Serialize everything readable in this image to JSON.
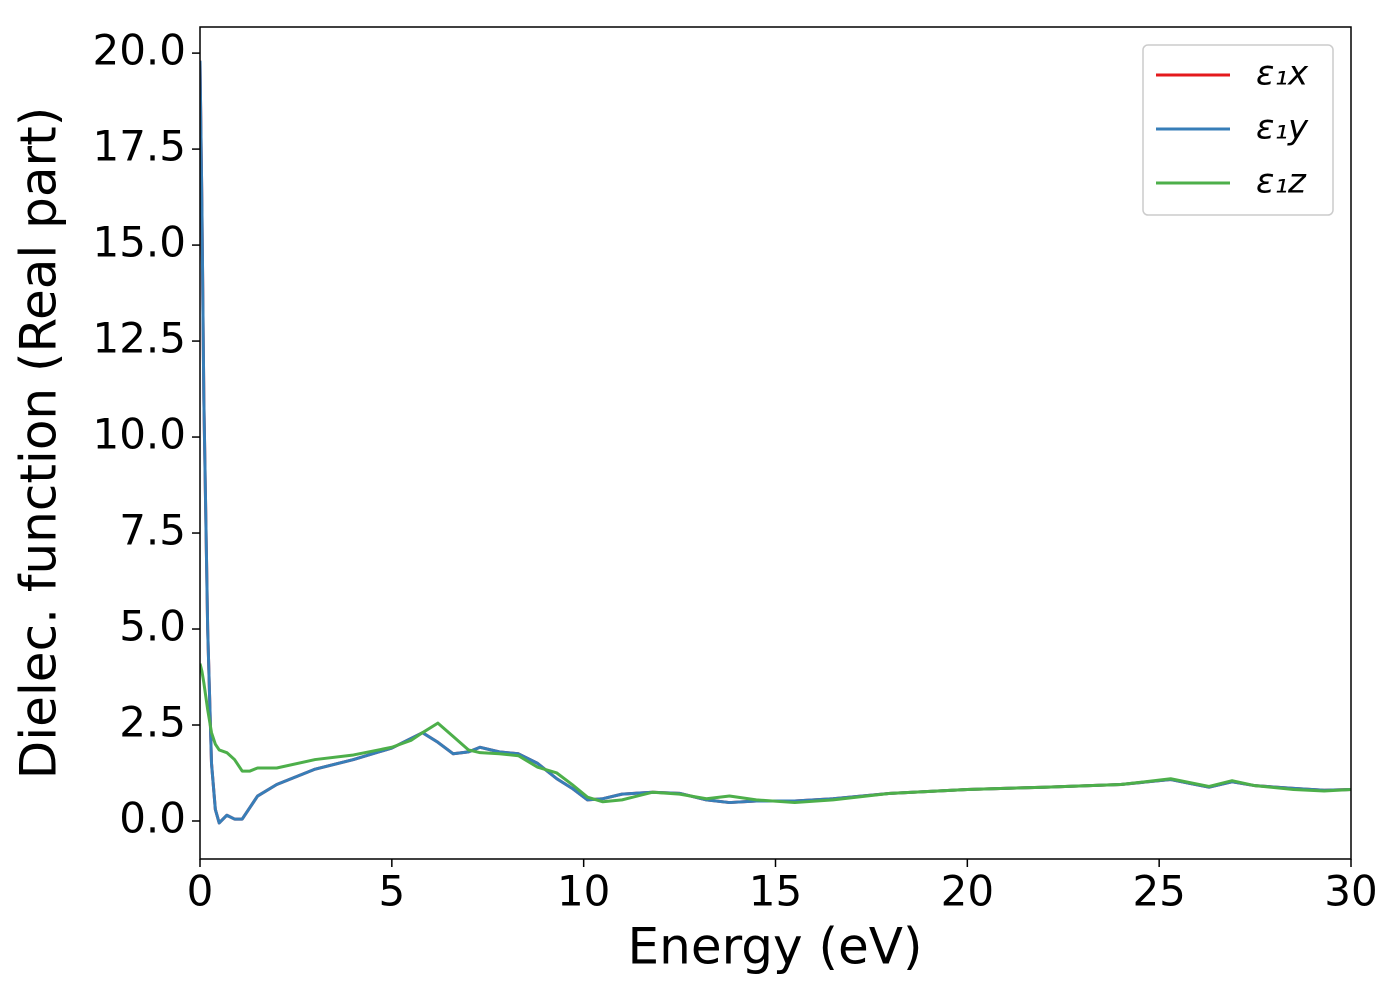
{
  "chart_data": {
    "type": "line",
    "xlabel": "Energy (eV)",
    "ylabel": "Dielec. function (Real part)",
    "xlim": [
      0,
      30
    ],
    "ylim": [
      -0.99,
      20.68
    ],
    "xticks": [
      0,
      5,
      10,
      15,
      20,
      25,
      30
    ],
    "yticks": [
      {
        "value": 0,
        "label": "0.0"
      },
      {
        "value": 2.5,
        "label": "2.5"
      },
      {
        "value": 5,
        "label": "5.0"
      },
      {
        "value": 7.5,
        "label": "7.5"
      },
      {
        "value": 10,
        "label": "10.0"
      },
      {
        "value": 12.5,
        "label": "12.5"
      },
      {
        "value": 15,
        "label": "15.0"
      },
      {
        "value": 17.5,
        "label": "17.5"
      },
      {
        "value": 20,
        "label": "20.0"
      }
    ],
    "legend": "upper right",
    "x": [
      0,
      0.05,
      0.1,
      0.2,
      0.3,
      0.4,
      0.5,
      0.7,
      0.9,
      1.1,
      1.3,
      1.5,
      2,
      3,
      4,
      5,
      5.5,
      5.8,
      6.2,
      6.6,
      7,
      7.3,
      7.8,
      8.3,
      8.8,
      9.3,
      9.7,
      10.1,
      10.5,
      11,
      11.8,
      12.5,
      13.2,
      13.8,
      14.5,
      15.5,
      16.5,
      18,
      20,
      22,
      24,
      25.3,
      25.8,
      26.3,
      26.9,
      27.5,
      28.5,
      29.3,
      30
    ],
    "series": [
      {
        "name": "ε₁x",
        "color": "#e41a1c",
        "values": [
          19.8,
          16,
          11,
          5,
          1.5,
          0.3,
          -0.05,
          0.15,
          0.05,
          0.05,
          0.35,
          0.65,
          0.95,
          1.35,
          1.6,
          1.9,
          2.15,
          2.3,
          2.05,
          1.75,
          1.8,
          1.92,
          1.8,
          1.75,
          1.5,
          1.1,
          0.85,
          0.55,
          0.58,
          0.7,
          0.75,
          0.72,
          0.55,
          0.48,
          0.52,
          0.52,
          0.58,
          0.72,
          0.82,
          0.88,
          0.95,
          1.08,
          0.98,
          0.88,
          1.02,
          0.92,
          0.85,
          0.8,
          0.82
        ]
      },
      {
        "name": "ε₁y",
        "color": "#377eb8",
        "values": [
          19.8,
          16,
          11,
          5,
          1.5,
          0.3,
          -0.05,
          0.15,
          0.05,
          0.05,
          0.35,
          0.65,
          0.95,
          1.35,
          1.6,
          1.9,
          2.15,
          2.3,
          2.05,
          1.75,
          1.8,
          1.92,
          1.8,
          1.75,
          1.5,
          1.1,
          0.85,
          0.55,
          0.58,
          0.7,
          0.75,
          0.72,
          0.55,
          0.48,
          0.52,
          0.52,
          0.58,
          0.72,
          0.82,
          0.88,
          0.95,
          1.08,
          0.98,
          0.88,
          1.02,
          0.92,
          0.85,
          0.8,
          0.82
        ]
      },
      {
        "name": "ε₁z",
        "color": "#4daf4a",
        "values": [
          4.1,
          3.9,
          3.6,
          2.9,
          2.3,
          2.0,
          1.85,
          1.78,
          1.6,
          1.3,
          1.3,
          1.38,
          1.38,
          1.6,
          1.72,
          1.92,
          2.1,
          2.3,
          2.55,
          2.2,
          1.85,
          1.78,
          1.75,
          1.7,
          1.4,
          1.25,
          0.95,
          0.62,
          0.5,
          0.55,
          0.75,
          0.7,
          0.58,
          0.65,
          0.55,
          0.48,
          0.55,
          0.72,
          0.82,
          0.88,
          0.95,
          1.1,
          1.0,
          0.9,
          1.05,
          0.92,
          0.82,
          0.78,
          0.82
        ]
      }
    ]
  }
}
